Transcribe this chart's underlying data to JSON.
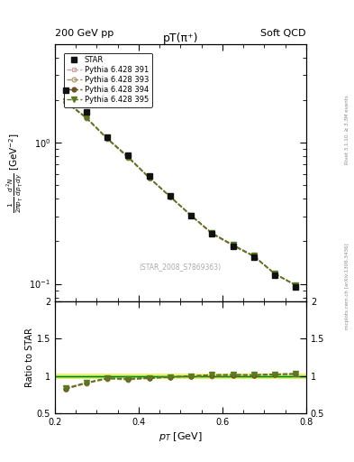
{
  "title_left": "200 GeV pp",
  "title_right": "Soft QCD",
  "plot_title": "pT(π⁺)",
  "xlabel": "p_T [GeV]",
  "right_label_top": "Rivet 3.1.10, ≥ 3.3M events",
  "right_label_bottom": "mcplots.cern.ch [arXiv:1306.3436]",
  "watermark": "(STAR_2008_S7869363)",
  "xlim": [
    0.2,
    0.8
  ],
  "ylim_main": [
    0.075,
    5.0
  ],
  "ylim_ratio": [
    0.5,
    2.0
  ],
  "star_pt": [
    0.225,
    0.275,
    0.325,
    0.375,
    0.425,
    0.475,
    0.525,
    0.575,
    0.625,
    0.675,
    0.725,
    0.775
  ],
  "star_y": [
    2.35,
    1.65,
    1.1,
    0.82,
    0.58,
    0.42,
    0.305,
    0.225,
    0.185,
    0.155,
    0.115,
    0.095
  ],
  "star_yerr": [
    0.05,
    0.04,
    0.025,
    0.02,
    0.015,
    0.01,
    0.008,
    0.006,
    0.005,
    0.004,
    0.003,
    0.003
  ],
  "pythia_pt": [
    0.225,
    0.275,
    0.325,
    0.375,
    0.425,
    0.475,
    0.525,
    0.575,
    0.625,
    0.675,
    0.725,
    0.775
  ],
  "p391_y": [
    1.96,
    1.5,
    1.07,
    0.79,
    0.565,
    0.415,
    0.305,
    0.228,
    0.188,
    0.157,
    0.118,
    0.098
  ],
  "p393_y": [
    1.94,
    1.49,
    1.06,
    0.78,
    0.563,
    0.413,
    0.303,
    0.226,
    0.186,
    0.156,
    0.117,
    0.097
  ],
  "p394_y": [
    1.95,
    1.5,
    1.07,
    0.79,
    0.565,
    0.415,
    0.305,
    0.228,
    0.188,
    0.157,
    0.118,
    0.098
  ],
  "p395_y": [
    1.97,
    1.51,
    1.07,
    0.795,
    0.567,
    0.416,
    0.306,
    0.229,
    0.189,
    0.158,
    0.118,
    0.098
  ],
  "color_391": "#c8a0a0",
  "color_393": "#a09060",
  "color_394": "#6b5020",
  "color_395": "#5a7a20",
  "star_color": "#111111",
  "band_color_inner": "#b0e870",
  "band_color_outer": "#f0f080",
  "ratio_391": [
    0.835,
    0.908,
    0.972,
    0.963,
    0.974,
    0.988,
    1.0,
    1.013,
    1.016,
    1.013,
    1.026,
    1.032
  ],
  "ratio_393": [
    0.826,
    0.903,
    0.964,
    0.951,
    0.97,
    0.984,
    0.997,
    1.004,
    1.005,
    1.006,
    1.017,
    1.021
  ],
  "ratio_394": [
    0.83,
    0.908,
    0.972,
    0.963,
    0.974,
    0.988,
    1.0,
    1.013,
    1.016,
    1.013,
    1.026,
    1.032
  ],
  "ratio_395": [
    0.838,
    0.915,
    0.972,
    0.968,
    0.977,
    0.99,
    1.003,
    1.018,
    1.022,
    1.019,
    1.026,
    1.032
  ]
}
